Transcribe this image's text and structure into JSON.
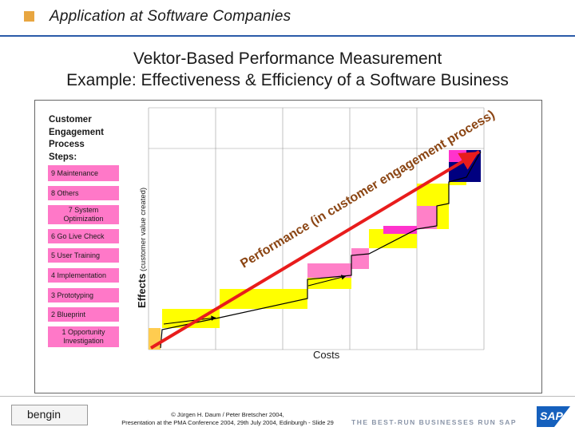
{
  "header": {
    "title": "Application at Software Companies"
  },
  "main": {
    "title_line1": "Vektor-Based Performance Measurement",
    "title_line2": "Example: Effectiveness & Efficiency of a Software Business"
  },
  "diagram": {
    "steps_heading_lines": [
      "Customer",
      "Engagement",
      "Process",
      "Steps:"
    ],
    "steps": [
      {
        "label": "9 Maintenance"
      },
      {
        "label": "8 Others"
      },
      {
        "label_line1": "7 System",
        "label_line2": "Optimization"
      },
      {
        "label": "6 Go Live Check"
      },
      {
        "label": "5 User Training"
      },
      {
        "label": "4 Implementation"
      },
      {
        "label": "3 Prototyping"
      },
      {
        "label": "2 Blueprint"
      },
      {
        "label_line1": "1 Opportunity",
        "label_line2": "Investigation"
      }
    ],
    "y_axis_label_bold": "Effects",
    "y_axis_label_rest": " (customer value created)",
    "x_axis_label": "Costs",
    "diagonal_label": "Performance (in customer engagement process)",
    "colors": {
      "step_fill": "#ff78c8",
      "yellow": "#ffff00",
      "navy": "#000080",
      "magenta": "#ff33cc",
      "pink": "#ff80c8",
      "arrow": "#e81c1c",
      "diag_text": "#8b4513"
    }
  },
  "footer": {
    "logo_text": "bengin",
    "copyright_line1": "© Jürgen H. Daum / Peter Bretscher 2004,",
    "copyright_line2": "Presentation at the PMA Conference 2004, 29th July 2004, Edinburgh  - Slide 29",
    "tagline": "THE BEST-RUN BUSINESSES RUN SAP",
    "sap_logo_text": "SAP"
  }
}
